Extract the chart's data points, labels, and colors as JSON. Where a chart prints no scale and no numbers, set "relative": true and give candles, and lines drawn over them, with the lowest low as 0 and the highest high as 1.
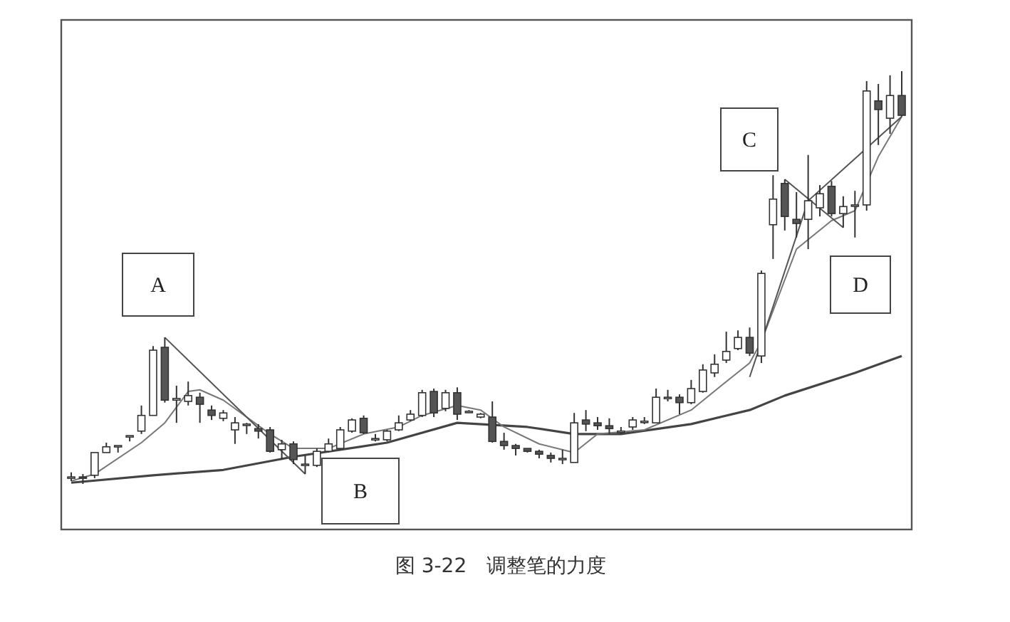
{
  "chart_data": {
    "type": "candlestick",
    "title": "图 3-22　调整笔的力度",
    "relative": true,
    "categories": [
      null,
      null,
      null,
      null,
      null,
      null,
      null,
      null,
      null,
      null,
      null,
      null,
      null,
      null,
      null,
      null,
      null,
      null,
      null,
      null,
      null,
      null,
      null,
      null,
      null,
      null,
      null,
      null,
      null,
      null,
      null,
      null,
      null,
      null,
      null,
      null,
      null,
      null,
      null,
      null,
      null,
      null,
      null,
      null,
      null,
      null,
      null,
      null,
      null,
      null,
      null,
      null,
      null,
      null,
      null,
      null,
      null,
      null,
      null,
      null,
      null,
      null,
      null,
      null,
      null,
      null,
      null,
      null,
      null,
      null,
      null,
      null
    ],
    "ohlc": [
      [
        0.017,
        0.028,
        0.007,
        0.017
      ],
      [
        0.017,
        0.024,
        0,
        0.014
      ],
      [
        0.021,
        0.076,
        0.014,
        0.076
      ],
      [
        0.076,
        0.1,
        0.076,
        0.09
      ],
      [
        0.093,
        0.093,
        0.076,
        0.093
      ],
      [
        0.117,
        0.117,
        0.103,
        0.117
      ],
      [
        0.128,
        0.19,
        0.121,
        0.166
      ],
      [
        0.166,
        0.334,
        0.166,
        0.324
      ],
      [
        0.331,
        0.355,
        0.197,
        0.203
      ],
      [
        0.203,
        0.238,
        0.148,
        0.207
      ],
      [
        0.2,
        0.248,
        0.19,
        0.214
      ],
      [
        0.21,
        0.221,
        0.148,
        0.193
      ],
      [
        0.179,
        0.19,
        0.155,
        0.166
      ],
      [
        0.159,
        0.179,
        0.152,
        0.172
      ],
      [
        0.131,
        0.162,
        0.097,
        0.148
      ],
      [
        0.145,
        0.148,
        0.121,
        0.145
      ],
      [
        0.134,
        0.145,
        0.11,
        0.128
      ],
      [
        0.131,
        0.138,
        0.076,
        0.079
      ],
      [
        0.083,
        0.107,
        0.059,
        0.097
      ],
      [
        0.097,
        0.103,
        0.048,
        0.059
      ],
      [
        0.048,
        0.069,
        0.024,
        0.048
      ],
      [
        0.045,
        0.086,
        0.041,
        0.079
      ],
      [
        0.079,
        0.11,
        0.076,
        0.097
      ],
      [
        0.086,
        0.138,
        0.083,
        0.131
      ],
      [
        0.128,
        0.159,
        0.124,
        0.155
      ],
      [
        0.159,
        0.166,
        0.121,
        0.124
      ],
      [
        0.11,
        0.121,
        0.103,
        0.11
      ],
      [
        0.107,
        0.131,
        0.103,
        0.128
      ],
      [
        0.131,
        0.166,
        0.128,
        0.148
      ],
      [
        0.155,
        0.179,
        0.152,
        0.169
      ],
      [
        0.166,
        0.228,
        0.162,
        0.221
      ],
      [
        0.224,
        0.231,
        0.162,
        0.172
      ],
      [
        0.183,
        0.228,
        0.176,
        0.221
      ],
      [
        0.221,
        0.234,
        0.155,
        0.169
      ],
      [
        0.176,
        0.179,
        0.172,
        0.176
      ],
      [
        0.162,
        0.172,
        0.159,
        0.169
      ],
      [
        0.162,
        0.2,
        0.1,
        0.103
      ],
      [
        0.103,
        0.124,
        0.083,
        0.093
      ],
      [
        0.093,
        0.097,
        0.069,
        0.086
      ],
      [
        0.086,
        0.086,
        0.076,
        0.079
      ],
      [
        0.079,
        0.083,
        0.062,
        0.072
      ],
      [
        0.069,
        0.076,
        0.052,
        0.062
      ],
      [
        0.062,
        0.083,
        0.048,
        0.062
      ],
      [
        0.052,
        0.172,
        0.052,
        0.148
      ],
      [
        0.155,
        0.179,
        0.128,
        0.145
      ],
      [
        0.148,
        0.162,
        0.131,
        0.141
      ],
      [
        0.141,
        0.159,
        0.121,
        0.134
      ],
      [
        0.128,
        0.138,
        0.121,
        0.128
      ],
      [
        0.138,
        0.162,
        0.131,
        0.155
      ],
      [
        0.152,
        0.162,
        0.145,
        0.152
      ],
      [
        0.148,
        0.231,
        0.148,
        0.21
      ],
      [
        0.21,
        0.228,
        0.2,
        0.21
      ],
      [
        0.21,
        0.217,
        0.169,
        0.197
      ],
      [
        0.197,
        0.252,
        0.193,
        0.231
      ],
      [
        0.224,
        0.29,
        0.221,
        0.276
      ],
      [
        0.269,
        0.314,
        0.259,
        0.29
      ],
      [
        0.3,
        0.369,
        0.293,
        0.321
      ],
      [
        0.328,
        0.372,
        0.324,
        0.355
      ],
      [
        0.355,
        0.379,
        0.31,
        0.317
      ],
      [
        0.31,
        0.517,
        0.293,
        0.51
      ],
      [
        0.628,
        0.748,
        0.545,
        0.69
      ],
      [
        0.728,
        0.738,
        0.614,
        0.648
      ],
      [
        0.641,
        0.707,
        0.597,
        0.631
      ],
      [
        0.641,
        0.797,
        0.569,
        0.686
      ],
      [
        0.669,
        0.724,
        0.648,
        0.703
      ],
      [
        0.721,
        0.734,
        0.648,
        0.655
      ],
      [
        0.655,
        0.697,
        0.621,
        0.672
      ],
      [
        0.676,
        0.71,
        0.597,
        0.676
      ],
      [
        0.676,
        0.976,
        0.662,
        0.952
      ],
      [
        0.928,
        0.969,
        0.821,
        0.907
      ],
      [
        0.886,
        0.99,
        0.848,
        0.941
      ],
      [
        0.941,
        1,
        0.89,
        0.893
      ]
    ],
    "colors": [
      "#ffffff",
      "#555555",
      "#ffffff",
      "#ffffff",
      "#ffffff",
      "#ffffff",
      "#ffffff",
      "#ffffff",
      "#555555",
      "#ffffff",
      "#ffffff",
      "#555555",
      "#555555",
      "#ffffff",
      "#ffffff",
      "#ffffff",
      "#555555",
      "#555555",
      "#ffffff",
      "#555555",
      "#ffffff",
      "#ffffff",
      "#ffffff",
      "#ffffff",
      "#ffffff",
      "#555555",
      "#ffffff",
      "#ffffff",
      "#ffffff",
      "#ffffff",
      "#ffffff",
      "#555555",
      "#ffffff",
      "#555555",
      "#ffffff",
      "#ffffff",
      "#555555",
      "#555555",
      "#555555",
      "#555555",
      "#555555",
      "#555555",
      "#ffffff",
      "#ffffff",
      "#555555",
      "#555555",
      "#555555",
      "#ffffff",
      "#ffffff",
      "#ffffff",
      "#ffffff",
      "#ffffff",
      "#555555",
      "#ffffff",
      "#ffffff",
      "#ffffff",
      "#ffffff",
      "#ffffff",
      "#555555",
      "#ffffff",
      "#ffffff",
      "#555555",
      "#555555",
      "#ffffff",
      "#ffffff",
      "#555555",
      "#ffffff",
      "#ffffff",
      "#ffffff",
      "#555555",
      "#ffffff",
      "#555555"
    ],
    "series": [
      {
        "type": "line",
        "color": "#444444",
        "values": [
          0.003,
          null,
          null,
          null,
          null,
          null,
          null,
          0.021,
          null,
          null,
          null,
          null,
          null,
          0.034,
          null,
          null,
          null,
          null,
          null,
          0.066,
          null,
          null,
          null,
          null,
          null,
          null,
          null,
          0.1,
          null,
          null,
          null,
          null,
          null,
          0.148,
          null,
          null,
          null,
          null,
          null,
          0.138,
          null,
          null,
          null,
          0.121,
          null,
          null,
          null,
          0.121,
          null,
          null,
          null,
          null,
          null,
          0.145,
          null,
          null,
          null,
          null,
          0.179,
          null,
          null,
          0.214,
          null,
          null,
          null,
          null,
          null,
          0.269,
          null,
          null,
          null,
          0.31
        ]
      },
      {
        "type": "line",
        "color": "#777777",
        "values": [
          0.007,
          null,
          0.024,
          null,
          null,
          null,
          0.1,
          null,
          0.148,
          null,
          0.224,
          0.228,
          null,
          0.203,
          null,
          null,
          null,
          0.121,
          null,
          0.086,
          null,
          null,
          0.086,
          null,
          null,
          0.121,
          null,
          null,
          0.138,
          null,
          0.166,
          null,
          null,
          0.19,
          null,
          0.179,
          null,
          0.138,
          null,
          null,
          0.097,
          null,
          null,
          0.076,
          null,
          0.121,
          null,
          null,
          null,
          0.131,
          null,
          null,
          null,
          0.179,
          null,
          null,
          0.248,
          null,
          0.293,
          0.345,
          null,
          null,
          0.569,
          null,
          null,
          0.638,
          null,
          0.662,
          null,
          0.793,
          null,
          0.89
        ]
      },
      {
        "type": "line",
        "color": "#555555",
        "values": [
          null,
          null,
          null,
          null,
          null,
          null,
          null,
          null,
          0.355,
          null,
          null,
          null,
          null,
          null,
          null,
          null,
          null,
          null,
          null,
          null,
          0.024,
          null,
          null,
          null,
          null,
          null,
          null,
          null,
          null,
          null,
          null,
          null,
          null,
          null,
          null,
          null,
          null,
          null,
          null,
          null,
          null,
          null,
          null,
          null,
          null,
          null,
          null,
          null,
          null,
          null,
          null,
          null,
          null,
          null,
          null,
          null,
          null,
          null,
          null,
          null,
          null,
          null,
          null,
          null,
          null,
          null,
          null,
          null,
          null,
          null,
          null,
          null
        ]
      },
      {
        "type": "line",
        "color": "#555555",
        "values": [
          null,
          null,
          null,
          null,
          null,
          null,
          null,
          null,
          null,
          null,
          null,
          null,
          null,
          null,
          null,
          null,
          null,
          null,
          null,
          null,
          null,
          null,
          null,
          null,
          null,
          null,
          null,
          null,
          null,
          null,
          null,
          null,
          null,
          null,
          null,
          null,
          null,
          null,
          null,
          null,
          null,
          null,
          null,
          null,
          null,
          null,
          null,
          null,
          null,
          null,
          null,
          null,
          null,
          null,
          null,
          null,
          null,
          null,
          0.259,
          null,
          null,
          null,
          null,
          0.686,
          null,
          null,
          null,
          null,
          null,
          null,
          null,
          0.89
        ]
      },
      {
        "type": "line",
        "color": "#555555",
        "values": [
          null,
          null,
          null,
          null,
          null,
          null,
          null,
          null,
          null,
          null,
          null,
          null,
          null,
          null,
          null,
          null,
          null,
          null,
          null,
          null,
          null,
          null,
          null,
          null,
          null,
          null,
          null,
          null,
          null,
          null,
          null,
          null,
          null,
          null,
          null,
          null,
          null,
          null,
          null,
          null,
          null,
          null,
          null,
          null,
          null,
          null,
          null,
          null,
          null,
          null,
          null,
          null,
          null,
          null,
          null,
          null,
          null,
          null,
          null,
          null,
          null,
          0.738,
          null,
          null,
          null,
          null,
          0.621,
          null,
          null,
          null,
          null,
          null
        ]
      }
    ],
    "annotations": [
      "A",
      "B",
      "C",
      "D"
    ]
  }
}
